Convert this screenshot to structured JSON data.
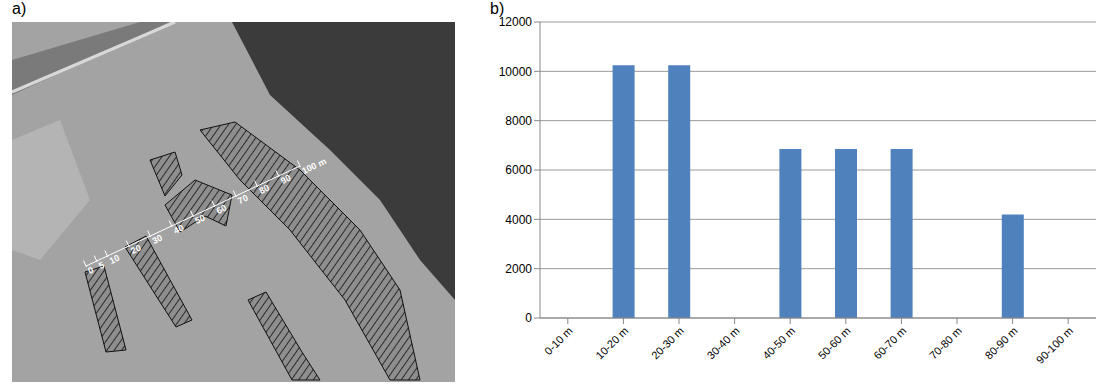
{
  "panel_labels": [
    "a)",
    "b)"
  ],
  "photo": {
    "scale_ticks": [
      0,
      5,
      10,
      20,
      30,
      40,
      50,
      60,
      70,
      80,
      90,
      {
        "value": 100,
        "label": "100 m"
      }
    ],
    "scale_range": [
      0,
      100
    ]
  },
  "chart_data": {
    "type": "bar",
    "categories": [
      "0-10 m",
      "10-20 m",
      "20-30 m",
      "30-40 m",
      "40-50 m",
      "50-60 m",
      "60-70 m",
      "70-80 m",
      "80-90 m",
      "90-100 m"
    ],
    "values": [
      0,
      10250,
      10250,
      0,
      6850,
      6850,
      6850,
      0,
      4200,
      0
    ],
    "color": "#4f81bd",
    "ylim": [
      0,
      12000
    ],
    "yticks": [
      0,
      2000,
      4000,
      6000,
      8000,
      10000,
      12000
    ],
    "grid": true
  }
}
